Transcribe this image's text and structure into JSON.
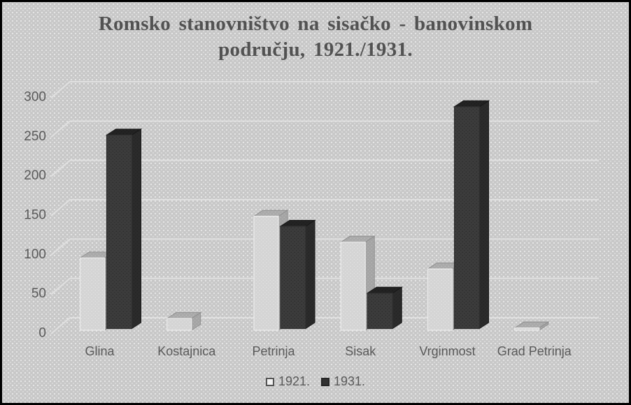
{
  "frame": {
    "border_color": "#000000",
    "background_color": "#c7c7c7"
  },
  "chart_data": {
    "type": "bar",
    "style": "3d-clustered-column",
    "title": "Romsko stanovništvo na sisačko - banovinskom području, 1921./1931.",
    "title_lines": [
      "Romsko stanovništvo na sisačko - banovinskom",
      "području, 1921./1931."
    ],
    "categories": [
      "Glina",
      "Kostajnica",
      "Petrinja",
      "Sisak",
      "Vrginmost",
      "Grad Petrinja"
    ],
    "series": [
      {
        "name": "1921.",
        "values": [
          92,
          15,
          145,
          112,
          78,
          3
        ],
        "colors": {
          "front": "#d4d4d4",
          "front_dot": "#e3e3e3",
          "top": "#a9a9a9",
          "top_dot": "#bdbdbd",
          "side": "#a4a4a4",
          "side_dot": "#b5b5b5",
          "edge": "#8f8f8f",
          "front_edge": "#ececec",
          "legend_fill": "#f2f2f2",
          "legend_border": "#555555"
        }
      },
      {
        "name": "1931.",
        "values": [
          246,
          0,
          130,
          45,
          282,
          0
        ],
        "colors": {
          "front": "#3c3c3c",
          "front_dot": "#2b2b2b",
          "top": "#232323",
          "top_dot": "#1a1a1a",
          "side": "#2b2b2b",
          "side_dot": "#222222",
          "edge": "#191919",
          "front_edge": "#2f2f2f",
          "legend_fill": "#333333",
          "legend_border": "#262626"
        }
      }
    ],
    "y_ticks": [
      0,
      50,
      100,
      150,
      200,
      250,
      300
    ],
    "ylim": [
      0,
      300
    ],
    "grid": true,
    "legend_position": "bottom",
    "axis_text_color": "#595959",
    "title_color": "#525252",
    "gridline_color": "#e0e0e0"
  }
}
